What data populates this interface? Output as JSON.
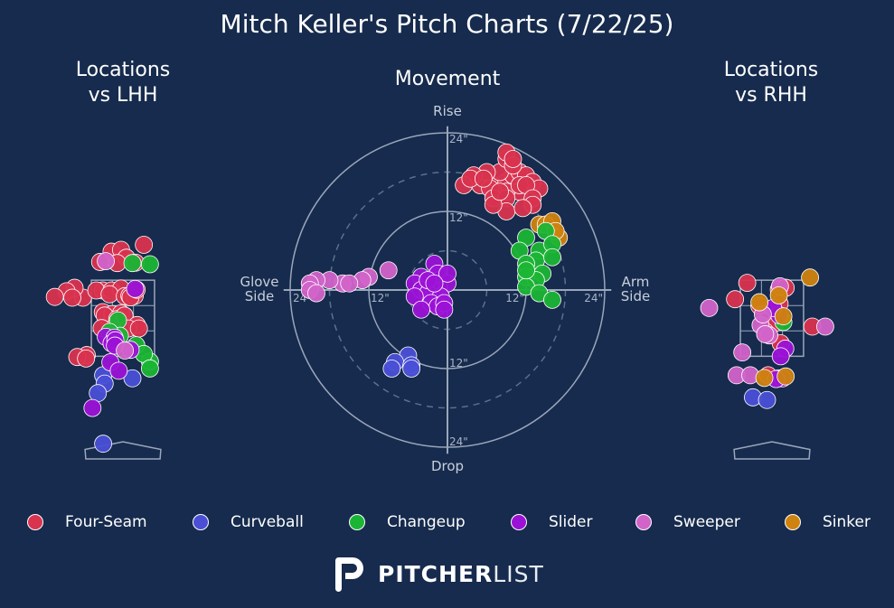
{
  "title": "Mitch Keller's Pitch Charts (7/22/25)",
  "panels": {
    "lhh_title": "Locations\nvs LHH",
    "movement_title": "Movement",
    "rhh_title": "Locations\nvs RHH"
  },
  "movement_axes": {
    "top": "Rise",
    "bottom": "Drop",
    "left": "Glove\nSide",
    "right": "Arm\nSide",
    "ring_labels": [
      "24\"",
      "12\""
    ]
  },
  "legend": [
    {
      "name": "Four-Seam",
      "color": "#d9334f"
    },
    {
      "name": "Curveball",
      "color": "#4a4fd6"
    },
    {
      "name": "Changeup",
      "color": "#1bb535"
    },
    {
      "name": "Slider",
      "color": "#9b12d6"
    },
    {
      "name": "Sweeper",
      "color": "#d263c9"
    },
    {
      "name": "Sinker",
      "color": "#cf830f"
    }
  ],
  "brand": {
    "bold": "PITCHER",
    "light": "LIST"
  },
  "chart_data": [
    {
      "type": "scatter",
      "panel": "Locations vs LHH",
      "units": "feet (catcher view; plate x, plate z)",
      "strike_zone": {
        "x": [
          -0.83,
          0.83
        ],
        "z": [
          1.5,
          3.5
        ]
      },
      "series": [
        {
          "name": "Four-Seam",
          "points": [
            [
              -0.3,
              4.25
            ],
            [
              0.55,
              4.43
            ],
            [
              -0.05,
              4.3
            ],
            [
              0.09,
              4.09
            ],
            [
              0.33,
              3.96
            ],
            [
              -0.6,
              3.98
            ],
            [
              -0.15,
              3.95
            ],
            [
              -1.05,
              3.04
            ],
            [
              -1.27,
              3.3
            ],
            [
              -1.48,
              3.21
            ],
            [
              -0.53,
              3.23
            ],
            [
              -0.7,
              3.23
            ],
            [
              -0.3,
              3.23
            ],
            [
              -0.05,
              3.28
            ],
            [
              -0.35,
              3.13
            ],
            [
              0.05,
              3.08
            ],
            [
              0.17,
              3.09
            ],
            [
              0.31,
              3.09
            ],
            [
              0.2,
              3.05
            ],
            [
              0.36,
              3.25
            ],
            [
              -1.33,
              3.04
            ],
            [
              -1.79,
              3.06
            ],
            [
              -0.53,
              2.66
            ],
            [
              -0.28,
              2.61
            ],
            [
              -0.05,
              2.63
            ],
            [
              -0.48,
              2.57
            ],
            [
              -0.15,
              2.48
            ],
            [
              0.04,
              2.57
            ],
            [
              0.37,
              2.32
            ],
            [
              0.14,
              2.23
            ],
            [
              -0.3,
              2.21
            ],
            [
              -0.56,
              2.24
            ],
            [
              -0.95,
              1.53
            ],
            [
              0.42,
              2.23
            ],
            [
              -1.2,
              1.48
            ],
            [
              -0.97,
              1.44
            ]
          ]
        },
        {
          "name": "Curveball",
          "points": [
            [
              -0.52,
              1.0
            ],
            [
              -0.48,
              0.78
            ],
            [
              0.25,
              0.92
            ],
            [
              -0.66,
              0.53
            ],
            [
              -0.52,
              -0.8
            ]
          ]
        },
        {
          "name": "Changeup",
          "points": [
            [
              0.25,
              3.95
            ],
            [
              0.71,
              3.92
            ],
            [
              -0.13,
              2.44
            ],
            [
              -0.08,
              2.04
            ],
            [
              0.35,
              1.79
            ],
            [
              0.71,
              1.36
            ],
            [
              0.55,
              1.56
            ],
            [
              0.71,
              1.18
            ],
            [
              -0.35,
              2.14
            ]
          ]
        },
        {
          "name": "Slider",
          "points": [
            [
              0.32,
              3.27
            ],
            [
              -0.45,
              2.01
            ],
            [
              -0.22,
              1.99
            ],
            [
              -0.3,
              1.84
            ],
            [
              -0.2,
              1.92
            ],
            [
              -0.33,
              1.34
            ],
            [
              -0.11,
              1.12
            ],
            [
              -0.8,
              0.14
            ],
            [
              -0.21,
              1.78
            ],
            [
              0.2,
              1.67
            ]
          ]
        },
        {
          "name": "Sweeper",
          "points": [
            [
              -0.45,
              4.0
            ],
            [
              0.05,
              1.65
            ]
          ]
        }
      ]
    },
    {
      "type": "scatter",
      "panel": "Movement",
      "units": "inches (x: arm side +, glove side -; y: rise +, drop -)",
      "rings": [
        12,
        24
      ],
      "series": [
        {
          "name": "Four-Seam",
          "points": [
            [
              5,
              16
            ],
            [
              7,
              16
            ],
            [
              9,
              16.5
            ],
            [
              10,
              17.5
            ],
            [
              11,
              18
            ],
            [
              12,
              17.5
            ],
            [
              13,
              16.5
            ],
            [
              14,
              15.5
            ],
            [
              11,
              15
            ],
            [
              9,
              15
            ],
            [
              7,
              15
            ],
            [
              6.5,
              15.5
            ],
            [
              8,
              18
            ],
            [
              9,
              20
            ],
            [
              9,
              21
            ],
            [
              10,
              19
            ],
            [
              10,
              20
            ],
            [
              11,
              16
            ],
            [
              7,
              14
            ],
            [
              9,
              14
            ],
            [
              12,
              16
            ],
            [
              13,
              14
            ],
            [
              13,
              13
            ],
            [
              9,
              12
            ],
            [
              7,
              13
            ],
            [
              8,
              15
            ],
            [
              6,
              18
            ],
            [
              4,
              17.5
            ],
            [
              2.5,
              16
            ],
            [
              3.5,
              17
            ],
            [
              5.5,
              17
            ],
            [
              11.5,
              12.5
            ]
          ]
        },
        {
          "name": "Curveball",
          "points": [
            [
              -6,
              -10
            ],
            [
              -8,
              -11
            ],
            [
              -5.5,
              -11.5
            ],
            [
              -8.5,
              -12
            ],
            [
              -5.5,
              -12
            ]
          ]
        },
        {
          "name": "Changeup",
          "points": [
            [
              12,
              8
            ],
            [
              11,
              6
            ],
            [
              14,
              6
            ],
            [
              13.5,
              4.5
            ],
            [
              15,
              9
            ],
            [
              16,
              7
            ],
            [
              16,
              5
            ],
            [
              12,
              4
            ],
            [
              12,
              2
            ],
            [
              14.5,
              2.5
            ],
            [
              13.5,
              1.5
            ],
            [
              12,
              0.5
            ],
            [
              14,
              -0.5
            ],
            [
              16,
              -1.5
            ],
            [
              12,
              3
            ]
          ]
        },
        {
          "name": "Slider",
          "points": [
            [
              -2,
              4
            ],
            [
              -4,
              2
            ],
            [
              -1.5,
              2.5
            ],
            [
              -5,
              1
            ],
            [
              -4,
              0
            ],
            [
              -2,
              0
            ],
            [
              0,
              1
            ],
            [
              -3,
              -0.5
            ],
            [
              -5,
              -1
            ],
            [
              -1,
              -1
            ],
            [
              -2.5,
              -2
            ],
            [
              -1.5,
              -2.5
            ],
            [
              -0.5,
              -2
            ],
            [
              -4,
              -3
            ],
            [
              -0.5,
              -3
            ],
            [
              0,
              2.5
            ],
            [
              -3,
              1.5
            ],
            [
              -2,
              1
            ]
          ]
        },
        {
          "name": "Sweeper",
          "points": [
            [
              -9,
              3
            ],
            [
              -12,
              2
            ],
            [
              -13,
              1.5
            ],
            [
              -16,
              1
            ],
            [
              -15,
              1
            ],
            [
              -18,
              1.5
            ],
            [
              -20,
              1.5
            ],
            [
              -21,
              1
            ],
            [
              -21,
              0
            ],
            [
              -20,
              -0.5
            ]
          ]
        },
        {
          "name": "Sinker",
          "points": [
            [
              14,
              10
            ],
            [
              15,
              10
            ],
            [
              16,
              10.5
            ],
            [
              17,
              8
            ],
            [
              16.5,
              9
            ]
          ]
        }
      ]
    },
    {
      "type": "scatter",
      "panel": "Locations vs RHH",
      "units": "feet (catcher view; plate x, plate z)",
      "strike_zone": {
        "x": [
          -0.83,
          0.83
        ],
        "z": [
          1.5,
          3.5
        ]
      },
      "series": [
        {
          "name": "Four-Seam",
          "points": [
            [
              -0.65,
              3.43
            ],
            [
              -0.97,
              3.0
            ],
            [
              0.18,
              3.25
            ],
            [
              0.36,
              3.3
            ],
            [
              0.2,
              2.88
            ],
            [
              -0.33,
              2.82
            ],
            [
              0.09,
              2.38
            ],
            [
              -0.18,
              2.15
            ],
            [
              1.06,
              2.28
            ],
            [
              0.23,
              1.84
            ],
            [
              -0.1,
              1.0
            ]
          ]
        },
        {
          "name": "Curveball",
          "points": [
            [
              -0.5,
              0.42
            ],
            [
              -0.13,
              0.35
            ]
          ]
        },
        {
          "name": "Changeup",
          "points": [
            [
              0.3,
              2.4
            ]
          ]
        },
        {
          "name": "Slider",
          "points": [
            [
              0.19,
              2.58
            ],
            [
              0.03,
              2.77
            ],
            [
              0.35,
              1.7
            ],
            [
              0.23,
              1.5
            ],
            [
              0.18,
              0.92
            ],
            [
              0.28,
              0.92
            ],
            [
              0.11,
              0.9
            ]
          ]
        },
        {
          "name": "Sweeper",
          "points": [
            [
              -1.65,
              2.77
            ],
            [
              0.21,
              3.34
            ],
            [
              -0.3,
              2.32
            ],
            [
              -0.24,
              2.6
            ],
            [
              -0.07,
              2.05
            ],
            [
              -0.78,
              1.6
            ],
            [
              -0.93,
              1.0
            ],
            [
              -0.57,
              1.0
            ],
            [
              1.4,
              2.28
            ],
            [
              -0.18,
              2.08
            ]
          ]
        },
        {
          "name": "Sinker",
          "points": [
            [
              1.0,
              3.57
            ],
            [
              -0.33,
              2.92
            ],
            [
              0.18,
              3.1
            ],
            [
              0.3,
              2.55
            ],
            [
              0.36,
              0.97
            ],
            [
              -0.2,
              0.93
            ]
          ]
        }
      ]
    }
  ]
}
